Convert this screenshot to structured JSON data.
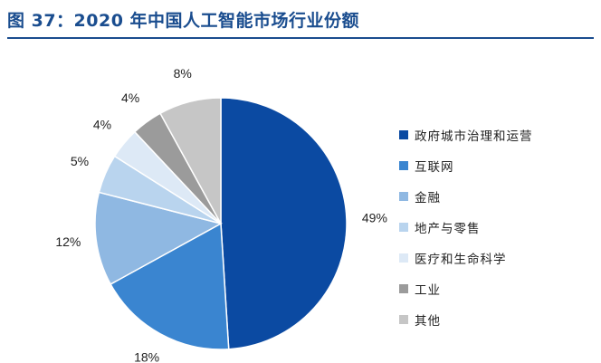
{
  "figure": {
    "title": "图 37：2020 年中国人工智能市场行业份额"
  },
  "chart_data": {
    "type": "pie",
    "start_angle_deg": 0,
    "direction": "clockwise",
    "legend_position": "right",
    "slices": [
      {
        "label": "政府城市治理和运营",
        "value": 49,
        "display": "49%",
        "color": "#0b4aa2"
      },
      {
        "label": "互联网",
        "value": 18,
        "display": "18%",
        "color": "#3a85d0"
      },
      {
        "label": "金融",
        "value": 12,
        "display": "12%",
        "color": "#8fb8e2"
      },
      {
        "label": "地产与零售",
        "value": 5,
        "display": "5%",
        "color": "#b9d4ee"
      },
      {
        "label": "医疗和生命科学",
        "value": 4,
        "display": "4%",
        "color": "#dde9f6"
      },
      {
        "label": "工业",
        "value": 4,
        "display": "4%",
        "color": "#9b9b9b"
      },
      {
        "label": "其他",
        "value": 8,
        "display": "8%",
        "color": "#c6c6c6"
      }
    ]
  }
}
